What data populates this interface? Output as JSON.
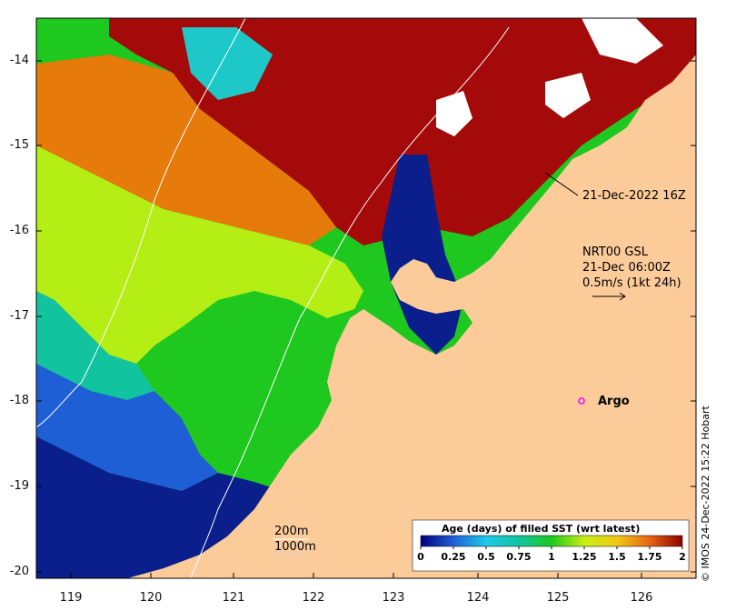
{
  "axes": {
    "y_ticks": [
      "-14",
      "-15",
      "-16",
      "-17",
      "-18",
      "-19",
      "-20"
    ],
    "x_ticks": [
      "119",
      "120",
      "121",
      "122",
      "123",
      "124",
      "125",
      "126"
    ]
  },
  "annotations": {
    "track_time": "21-Dec-2022 16Z",
    "current_product": "NRT00 GSL",
    "current_time": "21-Dec 06:00Z",
    "current_scale": "0.5m/s (1kt 24h)",
    "argo_label": "Argo",
    "contour_200": "200m",
    "contour_1000": "1000m"
  },
  "legend": {
    "title": "Age (days) of filled SST (wrt latest)",
    "ticks": [
      "0",
      "0.25",
      "0.5",
      "0.75",
      "1",
      "1.25",
      "1.5",
      "1.75",
      "2"
    ]
  },
  "credit": "© IMOS 24-Dec-2022 15:22 Hobart",
  "colors": {
    "land": "#fccb9a",
    "day0": "#0a1e8c",
    "day025": "#1f5fd6",
    "day05": "#1ec8c8",
    "day075": "#12c3a0",
    "day1": "#1ec81e",
    "day125": "#b4ee14",
    "day15": "#e67a0a",
    "day2": "#a50a0a"
  }
}
